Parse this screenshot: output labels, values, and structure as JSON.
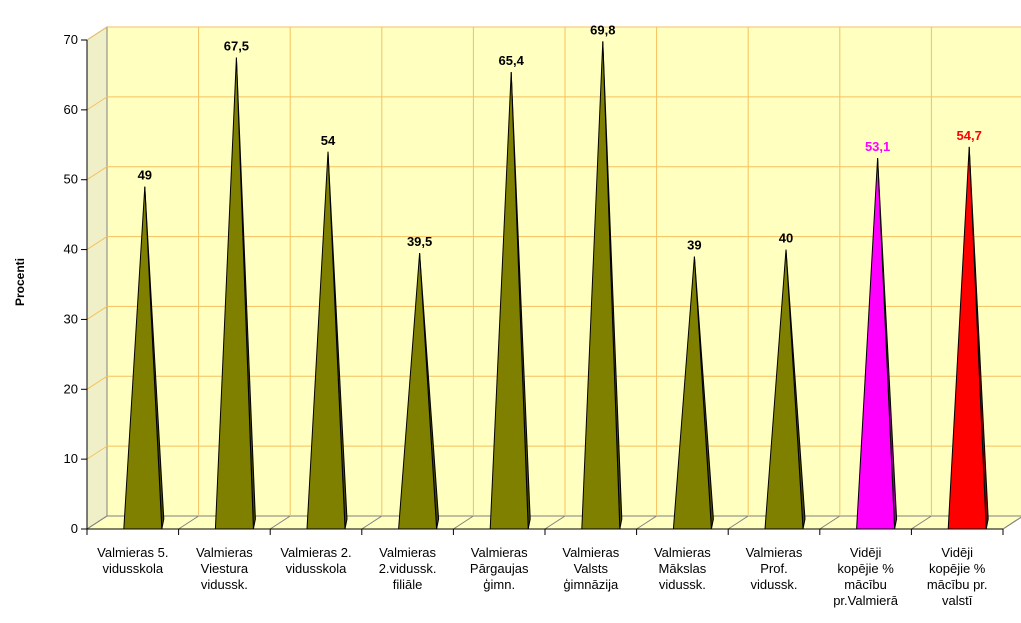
{
  "chart_data": {
    "type": "bar",
    "ylabel": "Procenti",
    "ylim": [
      0,
      70
    ],
    "yticks": [
      0,
      10,
      20,
      30,
      40,
      50,
      60,
      70
    ],
    "grid": true,
    "legend": "none",
    "categories": [
      "Valmieras 5.\nvidusskola",
      "Valmieras\nViestura\nvidussk.",
      "Valmieras 2.\nvidusskola",
      "Valmieras\n2.vidussk.\nfiliāle",
      "Valmieras\nPārgaujas\nģimn.",
      "Valmieras\nValsts\nģimnāzija",
      "Valmieras\nMākslas\nvidussk.",
      "Valmieras\nProf.\nvidussk.",
      "Vidēji\nkopējie %\nmācību\npr.Valmierā",
      "Vidēji\nkopējie %\nmācību pr.\nvalstī"
    ],
    "values": [
      49,
      67.5,
      54,
      39.5,
      65.4,
      69.8,
      39,
      40,
      53.1,
      54.7
    ],
    "value_labels": [
      "49",
      "67,5",
      "54",
      "39,5",
      "65,4",
      "69,8",
      "39",
      "40",
      "53,1",
      "54,7"
    ],
    "colors": {
      "default": "#808000",
      "valmiera_average": "#FF00FF",
      "national_average": "#FF0000",
      "wall": "#FFFFC0",
      "gridline": "#F5C15F"
    },
    "bar_colors": [
      "#808000",
      "#808000",
      "#808000",
      "#808000",
      "#808000",
      "#808000",
      "#808000",
      "#808000",
      "#FF00FF",
      "#FF0000"
    ],
    "label_colors": [
      "#000000",
      "#000000",
      "#000000",
      "#000000",
      "#000000",
      "#000000",
      "#000000",
      "#000000",
      "#FF00FF",
      "#FF0000"
    ]
  }
}
